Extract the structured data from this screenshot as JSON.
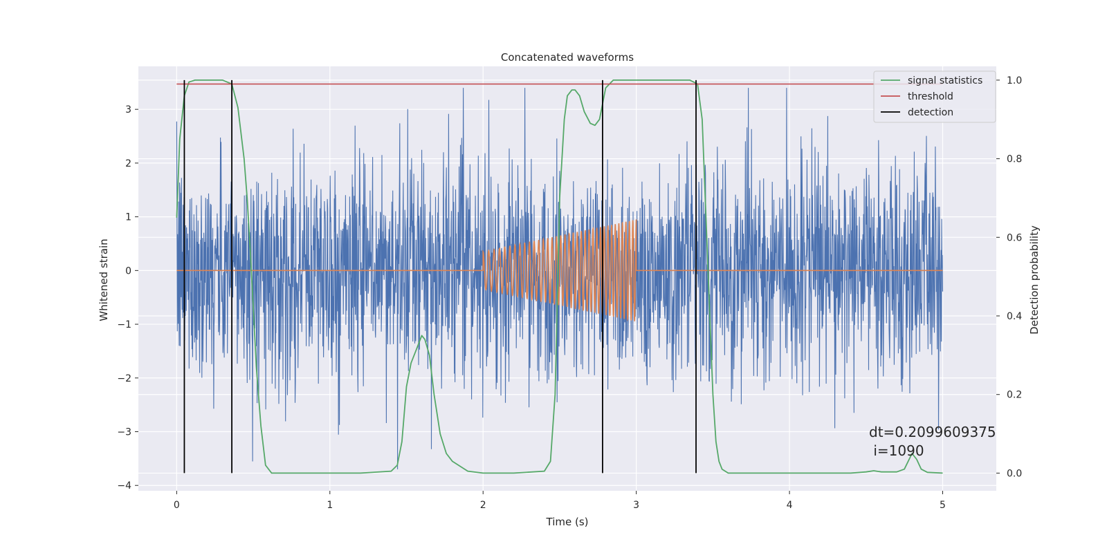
{
  "chart_data": {
    "type": "line",
    "title": "Concatenated waveforms",
    "xlabel": "Time (s)",
    "ylabel": "Whitened strain",
    "ylabel_right": "Detection probability",
    "xlim": [
      -0.25,
      5.35
    ],
    "ylim": [
      -4.1,
      3.8
    ],
    "ylim_right": [
      -0.045,
      1.035
    ],
    "xticks": [
      0,
      1,
      2,
      3,
      4,
      5
    ],
    "yticks": [
      -4,
      -3,
      -2,
      -1,
      0,
      1,
      2,
      3
    ],
    "yticks_right": [
      0.0,
      0.2,
      0.4,
      0.6,
      0.8,
      1.0
    ],
    "yticks_right_labels": [
      "0.0",
      "0.2",
      "0.4",
      "0.6",
      "0.8",
      "1.0"
    ],
    "grid": true,
    "legend_position": "top-right",
    "colors": {
      "strain": "#4c72b0",
      "template": "#dd8452",
      "statistics": "#55a868",
      "threshold": "#c44e52",
      "detection": "#000000",
      "plot_bg": "#eaeaf2",
      "grid": "#ffffff"
    },
    "series": [
      {
        "name": "signal statistics",
        "axis": "right",
        "x": [
          0.0,
          0.02,
          0.05,
          0.08,
          0.12,
          0.2,
          0.3,
          0.36,
          0.4,
          0.44,
          0.46,
          0.48,
          0.5,
          0.52,
          0.55,
          0.58,
          0.62,
          0.8,
          1.0,
          1.2,
          1.4,
          1.44,
          1.47,
          1.5,
          1.53,
          1.56,
          1.6,
          1.62,
          1.65,
          1.68,
          1.72,
          1.76,
          1.8,
          1.9,
          2.0,
          2.2,
          2.4,
          2.44,
          2.47,
          2.5,
          2.53,
          2.55,
          2.58,
          2.6,
          2.63,
          2.66,
          2.7,
          2.73,
          2.76,
          2.8,
          2.85,
          2.9,
          3.0,
          3.2,
          3.35,
          3.4,
          3.43,
          3.46,
          3.48,
          3.5,
          3.52,
          3.54,
          3.56,
          3.6,
          3.7,
          4.0,
          4.4,
          4.5,
          4.55,
          4.6,
          4.7,
          4.75,
          4.8,
          4.83,
          4.86,
          4.9,
          5.0
        ],
        "values": [
          0.65,
          0.85,
          0.96,
          0.995,
          1.0,
          1.0,
          1.0,
          0.99,
          0.93,
          0.8,
          0.7,
          0.57,
          0.42,
          0.27,
          0.12,
          0.02,
          0.0,
          0.0,
          0.0,
          0.0,
          0.005,
          0.02,
          0.08,
          0.22,
          0.28,
          0.31,
          0.35,
          0.34,
          0.3,
          0.2,
          0.1,
          0.05,
          0.03,
          0.005,
          0.0,
          0.0,
          0.005,
          0.03,
          0.2,
          0.7,
          0.9,
          0.96,
          0.975,
          0.975,
          0.96,
          0.92,
          0.89,
          0.885,
          0.9,
          0.98,
          1.0,
          1.0,
          1.0,
          1.0,
          1.0,
          0.99,
          0.9,
          0.6,
          0.4,
          0.2,
          0.08,
          0.03,
          0.01,
          0.0,
          0.0,
          0.0,
          0.0,
          0.003,
          0.006,
          0.003,
          0.003,
          0.01,
          0.05,
          0.035,
          0.01,
          0.002,
          0.0
        ]
      },
      {
        "name": "threshold",
        "axis": "right",
        "x": [
          0,
          5
        ],
        "values": [
          0.99,
          0.99
        ]
      },
      {
        "name": "detection",
        "axis": "right",
        "x": [
          0.05,
          0.36,
          2.78,
          3.39
        ],
        "y_range": [
          0.0,
          1.0
        ]
      }
    ],
    "annotation": {
      "text_line1": "dt=0.2099609375",
      "text_line2": " i=1090",
      "x": 4.5,
      "y": -3.0
    }
  }
}
